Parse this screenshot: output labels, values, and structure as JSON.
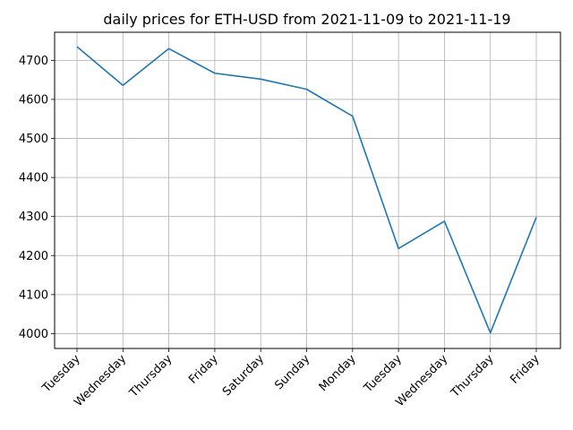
{
  "chart_data": {
    "type": "line",
    "title": "daily prices for ETH-USD from 2021-11-09 to 2021-11-19",
    "xlabel": "",
    "ylabel": "",
    "categories": [
      "Tuesday",
      "Wednesday",
      "Thursday",
      "Friday",
      "Saturday",
      "Sunday",
      "Monday",
      "Tuesday",
      "Wednesday",
      "Thursday",
      "Friday"
    ],
    "series": [
      {
        "values": [
          4735,
          4636,
          4730,
          4667,
          4652,
          4626,
          4557,
          4218,
          4288,
          4002,
          4298
        ],
        "color": "#1f77b4"
      }
    ],
    "ylim": [
      3962,
      4772
    ],
    "yticks": [
      4000,
      4100,
      4200,
      4300,
      4400,
      4500,
      4600,
      4700
    ],
    "grid": true,
    "legend": "none"
  }
}
